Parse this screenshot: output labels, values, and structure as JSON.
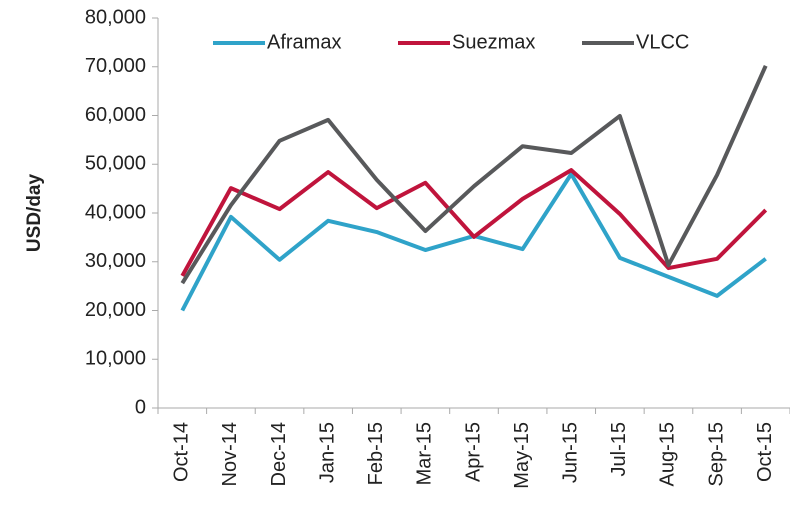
{
  "chart_data": {
    "type": "line",
    "y_label": "USD/day",
    "categories": [
      "Oct-14",
      "Nov-14",
      "Dec-14",
      "Jan-15",
      "Feb-15",
      "Mar-15",
      "Apr-15",
      "May-15",
      "Jun-15",
      "Jul-15",
      "Aug-15",
      "Sep-15",
      "Oct-15"
    ],
    "series": [
      {
        "name": "Aframax",
        "color": "#2fa3c9",
        "values": [
          20000,
          39200,
          30400,
          38400,
          36100,
          32400,
          35300,
          32600,
          48000,
          30800,
          26900,
          23000,
          30600
        ]
      },
      {
        "name": "Suezmax",
        "color": "#c0143c",
        "values": [
          27100,
          45100,
          40800,
          48400,
          41000,
          46200,
          35100,
          42900,
          48800,
          39800,
          28700,
          30600,
          40600
        ]
      },
      {
        "name": "VLCC",
        "color": "#58595b",
        "values": [
          25600,
          41600,
          54800,
          59100,
          46800,
          36300,
          45500,
          53700,
          52300,
          59900,
          29300,
          47800,
          70200
        ]
      }
    ],
    "ylim": [
      0,
      80000
    ],
    "yticks": [
      0,
      {
        "value": 10000,
        "label": "10,000"
      },
      {
        "value": 20000,
        "label": "20,000"
      },
      {
        "value": 30000,
        "label": "30,000"
      },
      {
        "value": 40000,
        "label": "40,000"
      },
      {
        "value": 50000,
        "label": "50,000"
      },
      {
        "value": 60000,
        "label": "60,000"
      },
      {
        "value": 70000,
        "label": "70,000"
      },
      {
        "value": 80000,
        "label": "80,000"
      }
    ],
    "legend": "top"
  }
}
